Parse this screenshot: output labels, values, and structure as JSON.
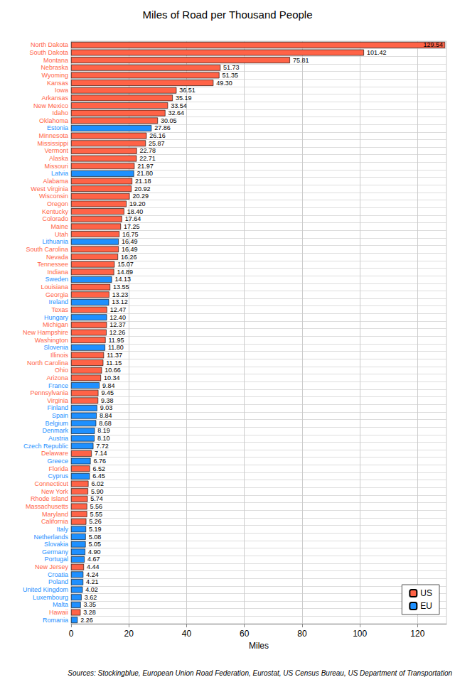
{
  "chart_data": {
    "type": "bar",
    "orientation": "horizontal",
    "title": "Miles of Road per Thousand People",
    "x_label": "Miles",
    "caption": "Sources: Stockingblue, European Union Road Federation, Eurostat, US Census Bureau, US Department of Transportation",
    "categories": [
      "North Dakota",
      "South Dakota",
      "Montana",
      "Nebraska",
      "Wyoming",
      "Kansas",
      "Iowa",
      "Arkansas",
      "New Mexico",
      "Idaho",
      "Oklahoma",
      "Estonia",
      "Minnesota",
      "Mississippi",
      "Vermont",
      "Alaska",
      "Missouri",
      "Latvia",
      "Alabama",
      "West Virginia",
      "Wisconsin",
      "Oregon",
      "Kentucky",
      "Colorado",
      "Maine",
      "Utah",
      "Lithuania",
      "South Carolina",
      "Nevada",
      "Tennessee",
      "Indiana",
      "Sweden",
      "Louisiana",
      "Georgia",
      "Ireland",
      "Texas",
      "Hungary",
      "Michigan",
      "New Hampshire",
      "Washington",
      "Slovenia",
      "Illinois",
      "North Carolina",
      "Ohio",
      "Arizona",
      "France",
      "Pennsylvania",
      "Virginia",
      "Finland",
      "Spain",
      "Belgium",
      "Denmark",
      "Austria",
      "Czech Republic",
      "Delaware",
      "Greece",
      "Florida",
      "Cyprus",
      "Connecticut",
      "New York",
      "Rhode Island",
      "Massachusetts",
      "Maryland",
      "California",
      "Italy",
      "Netherlands",
      "Slovakia",
      "Germany",
      "Portugal",
      "New Jersey",
      "Croatia",
      "Poland",
      "United Kingdom",
      "Luxembourg",
      "Malta",
      "Hawaii",
      "Romania"
    ],
    "series": [
      {
        "name": "US",
        "color": "#ff6347",
        "values": [
          129.54,
          101.42,
          75.81,
          51.73,
          51.35,
          49.3,
          36.51,
          35.19,
          33.54,
          32.64,
          30.05,
          null,
          26.16,
          25.87,
          22.78,
          22.71,
          21.97,
          null,
          21.18,
          20.92,
          20.29,
          19.2,
          18.4,
          17.64,
          17.25,
          16.75,
          null,
          16.49,
          16.26,
          15.07,
          14.89,
          null,
          13.55,
          13.23,
          null,
          12.47,
          null,
          12.37,
          12.26,
          11.95,
          null,
          11.37,
          11.15,
          10.66,
          10.34,
          null,
          9.45,
          9.38,
          null,
          null,
          null,
          null,
          null,
          null,
          7.14,
          null,
          6.52,
          null,
          6.02,
          5.9,
          5.74,
          5.56,
          5.55,
          5.26,
          null,
          null,
          null,
          null,
          null,
          4.44,
          null,
          null,
          null,
          null,
          null,
          3.28,
          null
        ],
        "value_labels": [
          "129.54",
          "101.42",
          "75.81",
          "51.73",
          "51.35",
          "49.30",
          "36.51",
          "35.19",
          "33.54",
          "32.64",
          "30.05",
          null,
          "26.16",
          "25.87",
          "22.78",
          "22.71",
          "21.97",
          null,
          "21.18",
          "20.92",
          "20.29",
          "19.20",
          "18.40",
          "17.64",
          "17.25",
          "16.75",
          null,
          "16.49",
          "16.26",
          "15.07",
          "14.89",
          null,
          "13.55",
          "13.23",
          null,
          "12.47",
          null,
          "12.37",
          "12.26",
          "11.95",
          null,
          "11.37",
          "11.15",
          "10.66",
          "10.34",
          null,
          "9.45",
          "9.38",
          null,
          null,
          null,
          null,
          null,
          null,
          "7.14",
          null,
          "6.52",
          null,
          "6.02",
          "5.90",
          "5.74",
          "5.56",
          "5.55",
          "5.26",
          null,
          null,
          null,
          null,
          null,
          "4.44",
          null,
          null,
          null,
          null,
          null,
          "3.28",
          null
        ]
      },
      {
        "name": "EU",
        "color": "#1e90ff",
        "values": [
          null,
          null,
          null,
          null,
          null,
          null,
          null,
          null,
          null,
          null,
          null,
          27.86,
          null,
          null,
          null,
          null,
          null,
          21.8,
          null,
          null,
          null,
          null,
          null,
          null,
          null,
          null,
          16.49,
          null,
          null,
          null,
          null,
          14.13,
          null,
          null,
          13.12,
          null,
          12.4,
          null,
          null,
          null,
          11.8,
          null,
          null,
          null,
          null,
          9.84,
          null,
          null,
          9.03,
          8.84,
          8.68,
          8.19,
          8.1,
          7.72,
          null,
          6.76,
          null,
          6.45,
          null,
          null,
          null,
          null,
          null,
          null,
          5.19,
          5.08,
          5.05,
          4.9,
          4.67,
          null,
          4.24,
          4.21,
          4.02,
          3.62,
          3.35,
          null,
          2.26
        ],
        "value_labels": [
          null,
          null,
          null,
          null,
          null,
          null,
          null,
          null,
          null,
          null,
          null,
          "27.86",
          null,
          null,
          null,
          null,
          null,
          "21.80",
          null,
          null,
          null,
          null,
          null,
          null,
          null,
          null,
          "16.49",
          null,
          null,
          null,
          null,
          "14.13",
          null,
          null,
          "13.12",
          null,
          "12.40",
          null,
          null,
          null,
          "11.80",
          null,
          null,
          null,
          null,
          "9.84",
          null,
          null,
          "9.03",
          "8.84",
          "8.68",
          "8.19",
          "8.10",
          "7.72",
          null,
          "6.76",
          null,
          "6.45",
          null,
          null,
          null,
          null,
          null,
          null,
          "5.19",
          "5.08",
          "5.05",
          "4.90",
          "4.67",
          null,
          "4.24",
          "4.21",
          "4.02",
          "3.62",
          "3.35",
          null,
          "2.26"
        ]
      }
    ],
    "xlim": [
      0,
      130
    ],
    "xticks": [
      0,
      20,
      40,
      60,
      80,
      100,
      120
    ],
    "grid": true,
    "legend": "bottom-right",
    "data_labels": true
  }
}
